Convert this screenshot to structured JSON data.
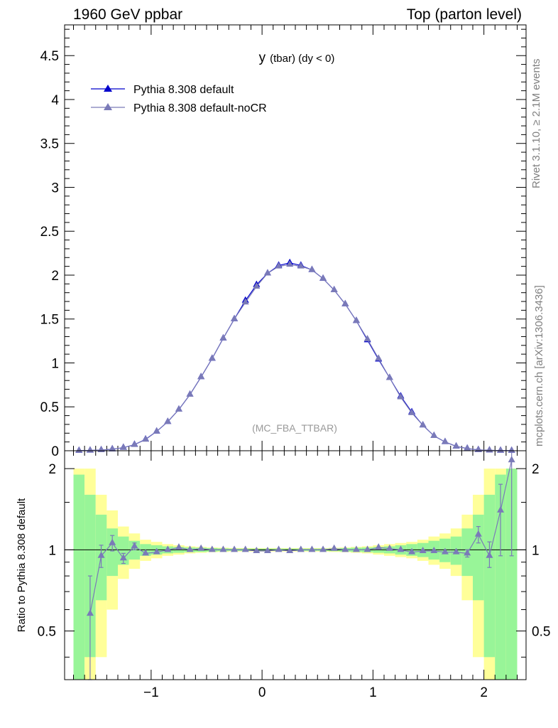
{
  "header": {
    "left": "1960 GeV ppbar",
    "right": "Top (parton level)"
  },
  "side": {
    "rivet": "Rivet 3.1.10, ≥ 2.1M events",
    "mcplots": "mcplots.cern.ch [arXiv:1306.3436]"
  },
  "colors": {
    "default": "#0000cc",
    "nocr": "#7a7ab8",
    "band_green": "#98f598",
    "band_yellow": "#ffff99"
  },
  "chart_data": [
    {
      "type": "line",
      "title": "y (tbar) (dy < 0)",
      "title_main": "y",
      "title_rest": "(tbar) (dy < 0)",
      "watermark": "(MC_FBA_TTBAR)",
      "xlim": [
        -1.78,
        2.38
      ],
      "ylim": [
        0,
        4.85
      ],
      "yticks": [
        "0",
        "0.5",
        "1",
        "1.5",
        "2",
        "2.5",
        "3",
        "3.5",
        "4",
        "4.5"
      ],
      "ytick_values": [
        0,
        0.5,
        1,
        1.5,
        2,
        2.5,
        3,
        3.5,
        4,
        4.5
      ],
      "legend_position": "top-left",
      "x": [
        -1.65,
        -1.55,
        -1.45,
        -1.35,
        -1.25,
        -1.15,
        -1.05,
        -0.95,
        -0.85,
        -0.75,
        -0.65,
        -0.55,
        -0.45,
        -0.35,
        -0.25,
        -0.15,
        -0.05,
        0.05,
        0.15,
        0.25,
        0.35,
        0.45,
        0.55,
        0.65,
        0.75,
        0.85,
        0.95,
        1.05,
        1.15,
        1.25,
        1.35,
        1.45,
        1.55,
        1.65,
        1.75,
        1.85,
        1.95,
        2.05,
        2.15,
        2.25
      ],
      "series": [
        {
          "name": "Pythia 8.308 default",
          "values": [
            0.001,
            0.003,
            0.008,
            0.018,
            0.035,
            0.07,
            0.13,
            0.22,
            0.33,
            0.47,
            0.64,
            0.84,
            1.05,
            1.28,
            1.5,
            1.71,
            1.89,
            2.02,
            2.11,
            2.14,
            2.11,
            2.06,
            1.96,
            1.83,
            1.67,
            1.48,
            1.26,
            1.04,
            0.83,
            0.62,
            0.44,
            0.29,
            0.17,
            0.1,
            0.05,
            0.025,
            0.01,
            0.005,
            0.002,
            0.001
          ]
        },
        {
          "name": "Pythia 8.308 default-noCR",
          "values": [
            0.001,
            0.003,
            0.008,
            0.018,
            0.035,
            0.068,
            0.128,
            0.22,
            0.33,
            0.47,
            0.64,
            0.84,
            1.05,
            1.28,
            1.5,
            1.69,
            1.87,
            2.02,
            2.1,
            2.12,
            2.1,
            2.06,
            1.96,
            1.83,
            1.67,
            1.48,
            1.27,
            1.05,
            0.83,
            0.61,
            0.43,
            0.29,
            0.17,
            0.1,
            0.05,
            0.025,
            0.01,
            0.005,
            0.002,
            0.001
          ]
        }
      ]
    },
    {
      "type": "line",
      "ylabel": "Ratio to Pythia 8.308 default",
      "xlim": [
        -1.78,
        2.38
      ],
      "ylim": [
        0.33,
        2.33
      ],
      "yscale": "log",
      "xticks": [
        "−1",
        "0",
        "1",
        "2"
      ],
      "xtick_values": [
        -1,
        0,
        1,
        2
      ],
      "yticks": [
        "0.5",
        "1",
        "2"
      ],
      "ytick_values": [
        0.5,
        1,
        2
      ],
      "reference_line": 1,
      "bin_edges": [
        -1.7,
        -1.6,
        -1.5,
        -1.4,
        -1.3,
        -1.2,
        -1.1,
        -1.0,
        -0.9,
        -0.8,
        -0.7,
        -0.6,
        -0.5,
        -0.4,
        -0.3,
        -0.2,
        -0.1,
        0.0,
        0.1,
        0.2,
        0.3,
        0.4,
        0.5,
        0.6,
        0.7,
        0.8,
        0.9,
        1.0,
        1.1,
        1.2,
        1.3,
        1.4,
        1.5,
        1.6,
        1.7,
        1.8,
        1.9,
        2.0,
        2.1,
        2.2,
        2.3
      ],
      "band_green": [
        0.9,
        0.6,
        0.35,
        0.2,
        0.12,
        0.08,
        0.05,
        0.04,
        0.03,
        0.025,
        0.02,
        0.018,
        0.015,
        0.012,
        0.01,
        0.01,
        0.01,
        0.01,
        0.01,
        0.01,
        0.01,
        0.01,
        0.01,
        0.012,
        0.015,
        0.018,
        0.02,
        0.025,
        0.03,
        0.04,
        0.05,
        0.06,
        0.08,
        0.1,
        0.12,
        0.2,
        0.35,
        0.6,
        0.9,
        1.0
      ],
      "band_yellow": [
        1.0,
        1.0,
        0.6,
        0.4,
        0.22,
        0.15,
        0.09,
        0.07,
        0.05,
        0.04,
        0.03,
        0.025,
        0.02,
        0.018,
        0.015,
        0.015,
        0.015,
        0.015,
        0.015,
        0.015,
        0.015,
        0.015,
        0.015,
        0.018,
        0.02,
        0.025,
        0.03,
        0.04,
        0.05,
        0.06,
        0.07,
        0.09,
        0.12,
        0.15,
        0.2,
        0.35,
        0.6,
        1.0,
        1.0,
        1.0
      ],
      "series": [
        {
          "name": "Pythia 8.308 default-noCR",
          "values": [
            null,
            0.58,
            0.95,
            1.06,
            0.93,
            1.03,
            0.97,
            0.98,
            1.0,
            1.02,
            1.0,
            1.01,
            1.0,
            1.0,
            1.0,
            1.0,
            0.99,
            0.99,
            1.0,
            0.99,
            1.0,
            1.0,
            1.0,
            1.01,
            1.0,
            1.0,
            1.0,
            1.02,
            1.01,
            1.0,
            0.98,
            0.99,
            0.99,
            0.98,
            0.98,
            0.97,
            1.14,
            0.95,
            1.4,
            2.15
          ],
          "err_up": [
            0,
            0.22,
            0.09,
            0.07,
            0.04,
            0.03,
            0.02,
            0.015,
            0.01,
            0.01,
            0.01,
            0.01,
            0.01,
            0.01,
            0.01,
            0.01,
            0.01,
            0.01,
            0.01,
            0.01,
            0.01,
            0.01,
            0.01,
            0.01,
            0.01,
            0.01,
            0.01,
            0.01,
            0.01,
            0.01,
            0.01,
            0.015,
            0.02,
            0.02,
            0.02,
            0.03,
            0.08,
            0.12,
            0.35,
            0.4
          ],
          "err_down": [
            0,
            0.25,
            0.09,
            0.07,
            0.04,
            0.03,
            0.02,
            0.015,
            0.01,
            0.01,
            0.01,
            0.01,
            0.01,
            0.01,
            0.01,
            0.01,
            0.01,
            0.01,
            0.01,
            0.01,
            0.01,
            0.01,
            0.01,
            0.01,
            0.01,
            0.01,
            0.01,
            0.01,
            0.01,
            0.01,
            0.01,
            0.015,
            0.02,
            0.02,
            0.02,
            0.03,
            0.08,
            0.09,
            0.45,
            1.2
          ]
        }
      ]
    }
  ]
}
